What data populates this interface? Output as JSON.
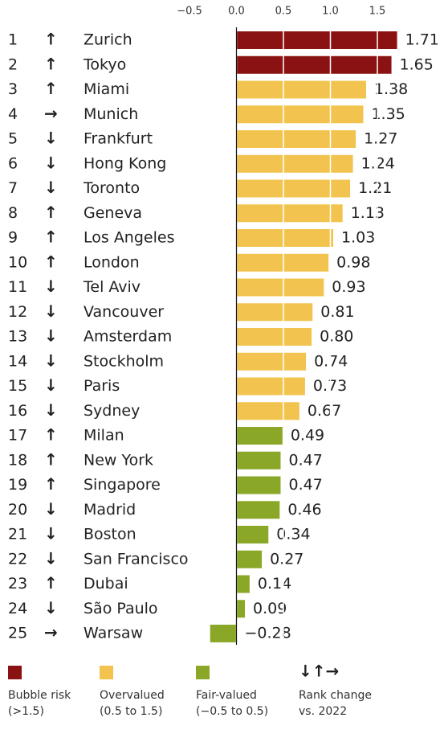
{
  "chart_data": {
    "type": "bar",
    "orientation": "horizontal",
    "ranks": [
      "1",
      "2",
      "3",
      "4",
      "5",
      "6",
      "7",
      "8",
      "9",
      "10",
      "11",
      "12",
      "13",
      "14",
      "15",
      "16",
      "17",
      "18",
      "19",
      "20",
      "21",
      "22",
      "23",
      "24",
      "25"
    ],
    "rank_change": [
      "↑",
      "↑",
      "↑",
      "→",
      "↓",
      "↓",
      "↓",
      "↑",
      "↑",
      "↑",
      "↓",
      "↓",
      "↓",
      "↓",
      "↓",
      "↓",
      "↑",
      "↑",
      "↑",
      "↓",
      "↓",
      "↓",
      "↑",
      "↓",
      "→"
    ],
    "categories": [
      "Zurich",
      "Tokyo",
      "Miami",
      "Munich",
      "Frankfurt",
      "Hong Kong",
      "Toronto",
      "Geneva",
      "Los Angeles",
      "London",
      "Tel Aviv",
      "Vancouver",
      "Amsterdam",
      "Stockholm",
      "Paris",
      "Sydney",
      "Milan",
      "New York",
      "Singapore",
      "Madrid",
      "Boston",
      "San Francisco",
      "Dubai",
      "São Paulo",
      "Warsaw"
    ],
    "values": [
      1.71,
      1.65,
      1.38,
      1.35,
      1.27,
      1.24,
      1.21,
      1.13,
      1.03,
      0.98,
      0.93,
      0.81,
      0.8,
      0.74,
      0.73,
      0.67,
      0.49,
      0.47,
      0.47,
      0.46,
      0.34,
      0.27,
      0.14,
      0.09,
      -0.28
    ],
    "value_labels": [
      "1.71",
      "1.65",
      "1.38",
      "1.35",
      "1.27",
      "1.24",
      "1.21",
      "1.13",
      "1.03",
      "0.98",
      "0.93",
      "0.81",
      "0.80",
      "0.74",
      "0.73",
      "0.67",
      "0.49",
      "0.47",
      "0.47",
      "0.46",
      "0.34",
      "0.27",
      "0.14",
      "0.09",
      "−0.28"
    ],
    "colors": [
      "#8b1212",
      "#8b1212",
      "#f2c44f",
      "#f2c44f",
      "#f2c44f",
      "#f2c44f",
      "#f2c44f",
      "#f2c44f",
      "#f2c44f",
      "#f2c44f",
      "#f2c44f",
      "#f2c44f",
      "#f2c44f",
      "#f2c44f",
      "#f2c44f",
      "#f2c44f",
      "#8aa727",
      "#8aa727",
      "#8aa727",
      "#8aa727",
      "#8aa727",
      "#8aa727",
      "#8aa727",
      "#8aa727",
      "#8aa727"
    ],
    "xlim": [
      -0.5,
      2.0
    ],
    "xticks": [
      {
        "value": -0.5,
        "label": "−0.5"
      },
      {
        "value": 0,
        "label": "0.0"
      },
      0.5,
      {
        "value": 1,
        "label": "1.0"
      },
      1.5
    ],
    "grid": true,
    "legend": [
      {
        "label": "Bubble risk",
        "note": "(>1.5)",
        "color": "#8b1212"
      },
      {
        "label": "Overvalued",
        "note": "(0.5 to 1.5)",
        "color": "#f2c44f"
      },
      {
        "label": "Fair-valued",
        "note": "(−0.5 to 0.5)",
        "color": "#8aa727"
      }
    ],
    "rank_legend": {
      "symbols": "↓↑→",
      "label": "Rank change",
      "note": "vs. 2022"
    }
  }
}
